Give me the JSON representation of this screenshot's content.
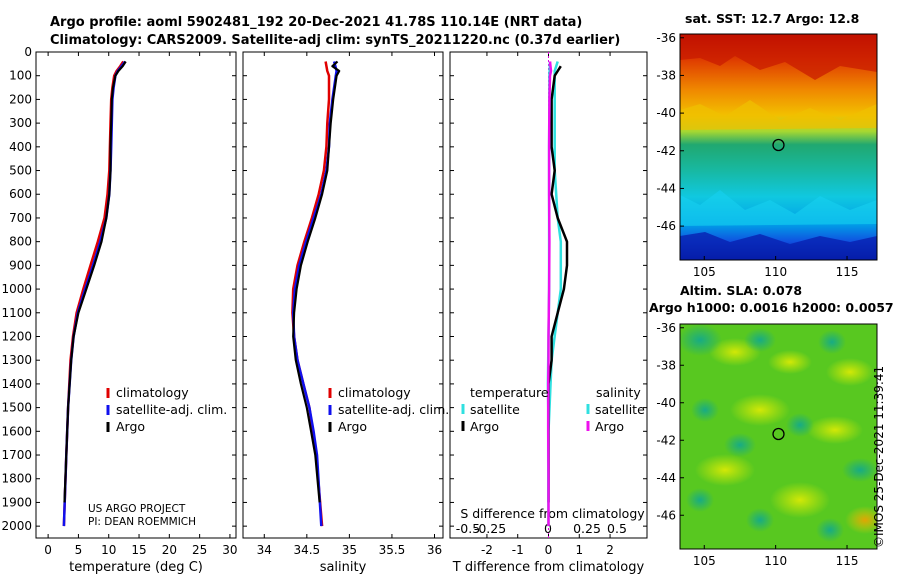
{
  "header": {
    "line1": "Argo profile: aoml 5902481_192 20-Dec-2021 41.78S 110.14E (NRT data)",
    "line2": "Climatology: CARS2009. Satellite-adj clim: synTS_20211220.nc (0.37d earlier)"
  },
  "colors": {
    "climatology": "#e00000",
    "satellite_adj": "#1010ee",
    "argo": "#000000",
    "sat_temp": "#30e0e0",
    "sat_sal": "#ee10ee"
  },
  "chart_data": [
    {
      "type": "line",
      "id": "temperature",
      "xlabel": "temperature (deg C)",
      "xlim": [
        -2,
        31
      ],
      "xticks": [
        "0",
        "5",
        "10",
        "15",
        "20",
        "25",
        "30"
      ],
      "ylim": [
        0,
        2050
      ],
      "yticks": [
        "0",
        "100",
        "200",
        "300",
        "400",
        "500",
        "600",
        "700",
        "800",
        "900",
        "1000",
        "1100",
        "1200",
        "1300",
        "1400",
        "1500",
        "1600",
        "1700",
        "1800",
        "1900",
        "2000"
      ],
      "series": [
        {
          "name": "climatology",
          "depth": [
            40,
            60,
            80,
            100,
            150,
            200,
            300,
            400,
            500,
            600,
            700,
            800,
            900,
            1000,
            1100,
            1200,
            1300,
            1500,
            1700,
            2000
          ],
          "values": [
            12.4,
            11.9,
            11.3,
            10.9,
            10.6,
            10.4,
            10.3,
            10.2,
            10.1,
            9.8,
            9.3,
            8.2,
            7.0,
            5.8,
            4.7,
            4.1,
            3.7,
            3.3,
            3.0,
            2.6
          ]
        },
        {
          "name": "satellite-adj. clim.",
          "depth": [
            40,
            60,
            80,
            100,
            150,
            200,
            300,
            400,
            500,
            600,
            700,
            800,
            900,
            1000,
            1100,
            1200,
            1300,
            1500,
            1700,
            2000
          ],
          "values": [
            12.7,
            12.1,
            11.5,
            11.1,
            10.8,
            10.6,
            10.5,
            10.4,
            10.3,
            10.1,
            9.6,
            8.6,
            7.4,
            6.1,
            4.9,
            4.2,
            3.8,
            3.3,
            3.0,
            2.6
          ]
        },
        {
          "name": "Argo",
          "depth": [
            40,
            60,
            80,
            100,
            150,
            200,
            300,
            400,
            500,
            600,
            700,
            800,
            900,
            1000,
            1100,
            1200,
            1300,
            1500,
            1700,
            1900
          ],
          "values": [
            12.8,
            12.3,
            11.6,
            11.1,
            10.7,
            10.5,
            10.4,
            10.3,
            10.3,
            10.1,
            9.6,
            8.8,
            7.6,
            6.3,
            5.0,
            4.2,
            3.8,
            3.3,
            3.0,
            2.7
          ]
        }
      ],
      "legend": {
        "position": "lower-right",
        "items": [
          "climatology",
          "satellite-adj. clim.",
          "Argo"
        ]
      },
      "annotation": [
        "US ARGO PROJECT",
        "PI: DEAN ROEMMICH"
      ]
    },
    {
      "type": "line",
      "id": "salinity",
      "xlabel": "salinity",
      "xlim": [
        33.75,
        36.1
      ],
      "xticks": [
        "34",
        "34.5",
        "35",
        "35.5",
        "36"
      ],
      "ylim": [
        0,
        2050
      ],
      "series": [
        {
          "name": "climatology",
          "depth": [
            40,
            80,
            100,
            200,
            300,
            400,
            500,
            600,
            700,
            800,
            900,
            1000,
            1100,
            1200,
            1300,
            1400,
            1500,
            1600,
            1700,
            2000
          ],
          "values": [
            34.72,
            34.74,
            34.76,
            34.76,
            34.74,
            34.73,
            34.7,
            34.64,
            34.56,
            34.47,
            34.39,
            34.34,
            34.33,
            34.35,
            34.39,
            34.46,
            34.53,
            34.57,
            34.61,
            34.68
          ]
        },
        {
          "name": "satellite-adj. clim.",
          "depth": [
            40,
            80,
            100,
            200,
            300,
            400,
            500,
            600,
            700,
            800,
            900,
            1000,
            1100,
            1200,
            1300,
            1400,
            1500,
            1600,
            1700,
            2000
          ],
          "values": [
            34.82,
            34.85,
            34.84,
            34.8,
            34.77,
            34.76,
            34.73,
            34.67,
            34.58,
            34.49,
            34.41,
            34.36,
            34.34,
            34.35,
            34.39,
            34.46,
            34.53,
            34.58,
            34.62,
            34.67
          ]
        },
        {
          "name": "Argo",
          "depth": [
            40,
            60,
            80,
            100,
            200,
            300,
            400,
            500,
            600,
            700,
            800,
            900,
            1000,
            1100,
            1200,
            1300,
            1400,
            1500,
            1600,
            1700,
            1900
          ],
          "values": [
            34.86,
            34.8,
            34.88,
            34.85,
            34.81,
            34.78,
            34.76,
            34.74,
            34.68,
            34.6,
            34.51,
            34.43,
            34.38,
            34.35,
            34.34,
            34.37,
            34.43,
            34.5,
            34.55,
            34.6,
            34.65
          ]
        }
      ],
      "legend": {
        "position": "lower-right",
        "items": [
          "climatology",
          "satellite-adj. clim.",
          "Argo"
        ]
      }
    },
    {
      "type": "line",
      "id": "difference",
      "xlabel": "T difference from climatology",
      "xlim": [
        -3.2,
        3.2
      ],
      "xticks": [
        "-2",
        "-1",
        "0",
        "1",
        "2"
      ],
      "top_axis_label": "S difference from climatology",
      "top_ticks": [
        "-0.5",
        "-0.25",
        "0",
        "0.25",
        "0.5"
      ],
      "ylim": [
        0,
        2050
      ],
      "series": [
        {
          "name": "temperature satellite",
          "depth": [
            40,
            80,
            150,
            300,
            500,
            700,
            800,
            900,
            1000,
            1100,
            1300,
            1600,
            1900
          ],
          "values": [
            0.3,
            0.2,
            0.2,
            0.2,
            0.2,
            0.3,
            0.4,
            0.4,
            0.4,
            0.3,
            0.1,
            0.0,
            0.0
          ]
        },
        {
          "name": "temperature Argo",
          "depth": [
            60,
            80,
            100,
            200,
            300,
            400,
            500,
            600,
            700,
            800,
            900,
            1000,
            1100,
            1200,
            1300,
            1400,
            1500,
            1700,
            1900
          ],
          "values": [
            0.4,
            0.3,
            0.2,
            0.1,
            0.1,
            0.1,
            0.2,
            0.1,
            0.3,
            0.6,
            0.6,
            0.5,
            0.3,
            0.1,
            0.1,
            0.0,
            0.0,
            0.0,
            0.0
          ]
        },
        {
          "name": "salinity satellite",
          "depth": [
            40,
            100,
            200,
            400,
            600,
            800,
            1000,
            1200,
            1300,
            1400,
            1500,
            1700,
            2000
          ],
          "values": [
            0.05,
            0.03,
            0.03,
            0.02,
            0.02,
            0.02,
            0.02,
            0.0,
            -0.01,
            -0.02,
            -0.01,
            -0.01,
            0.0
          ]
        },
        {
          "name": "salinity Argo",
          "depth": [
            40,
            80,
            100,
            200,
            400,
            600,
            800,
            1000,
            1100,
            1200,
            1300,
            1400,
            1600,
            1800,
            2000
          ],
          "values": [
            0.05,
            0.08,
            0.05,
            0.03,
            0.02,
            0.02,
            0.03,
            0.02,
            0.01,
            0.0,
            0.0,
            -0.01,
            -0.01,
            0.0,
            0.0
          ]
        }
      ],
      "legend": {
        "position": "lower-right",
        "temperature_header": "temperature",
        "salinity_header": "salinity",
        "items": [
          "satellite",
          "Argo",
          "satellite",
          "Argo"
        ]
      }
    }
  ],
  "maps": {
    "sst": {
      "title": "sat. SST: 12.7 Argo: 12.8",
      "yticks": [
        "-36",
        "-38",
        "-40",
        "-42",
        "-44",
        "-46"
      ],
      "xticks": [
        "105",
        "110",
        "115"
      ],
      "float_lon": 110.14,
      "float_lat": -41.78
    },
    "sla": {
      "title_line1": "Altim. SLA: 0.078",
      "title_line2": "Argo h1000: 0.0016 h2000: 0.0057",
      "yticks": [
        "-36",
        "-38",
        "-40",
        "-42",
        "-44",
        "-46"
      ],
      "xticks": [
        "105",
        "110",
        "115"
      ],
      "float_lon": 110.14,
      "float_lat": -41.78
    }
  },
  "copyright": "©IMOS 25-Dec-2021 11:39:41"
}
